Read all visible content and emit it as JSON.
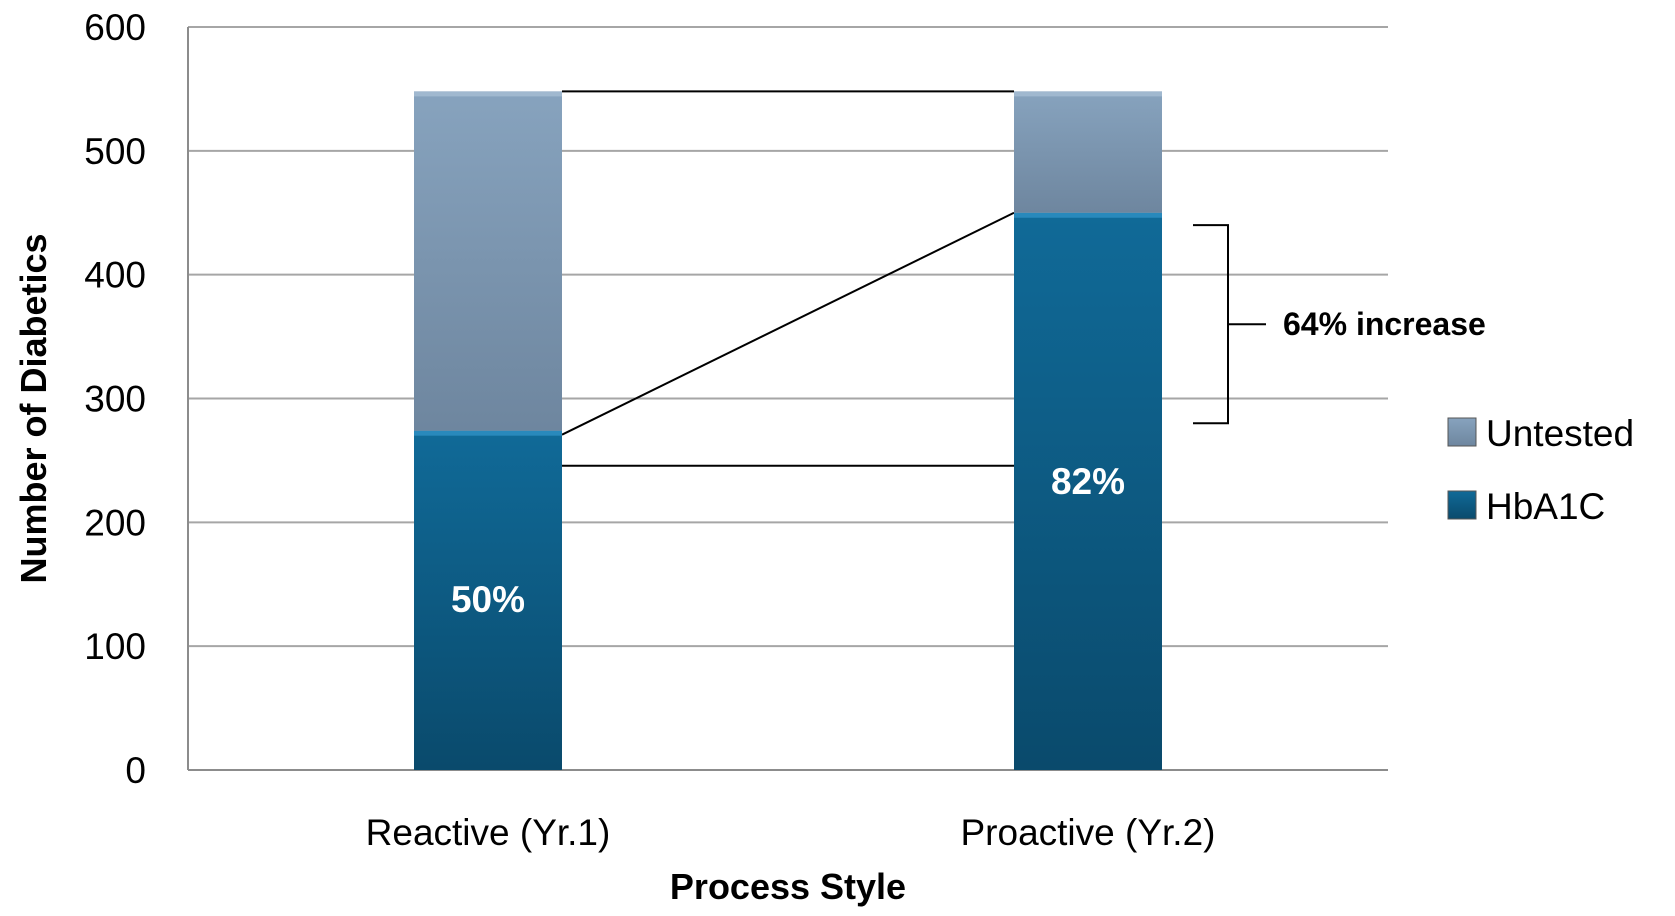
{
  "chart_data": {
    "type": "bar",
    "stacked": true,
    "categories": [
      "Reactive (Yr.1)",
      "Proactive (Yr.2)"
    ],
    "series": [
      {
        "name": "HbA1C",
        "values": [
          274,
          450
        ],
        "color": "#0c5f88",
        "data_labels": [
          "50%",
          "82%"
        ]
      },
      {
        "name": "Untested",
        "values": [
          274,
          98
        ],
        "color": "#7c97b2"
      }
    ],
    "xlabel": "Process Style",
    "ylabel": "Number of Diabetics",
    "ylim": [
      0,
      600
    ],
    "yticks": [
      0,
      100,
      200,
      300,
      400,
      500,
      600
    ],
    "grid": true,
    "legend_position": "right",
    "annotation": {
      "text": "64% increase",
      "range": [
        280,
        440
      ]
    }
  }
}
